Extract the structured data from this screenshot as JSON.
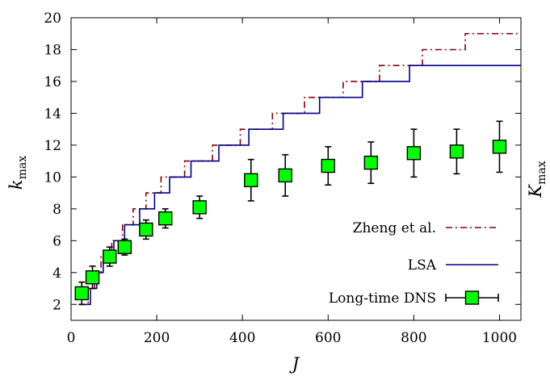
{
  "chart_data": {
    "type": "line",
    "xlabel": "J",
    "ylabel": {
      "main": "k",
      "sub": "max"
    },
    "y2label": {
      "main": "K",
      "sub": "max"
    },
    "xlim": [
      0,
      1050
    ],
    "ylim": [
      1,
      20
    ],
    "xticks": [
      0,
      200,
      400,
      600,
      800,
      1000
    ],
    "yticks": [
      2,
      4,
      6,
      8,
      10,
      12,
      14,
      16,
      18,
      20
    ],
    "grid": false,
    "legend_position": "bottom-right",
    "series": [
      {
        "name": "Zheng et al.",
        "style": "dash-dot-step",
        "color": "#8b0000",
        "x": [
          20,
          40,
          55,
          70,
          95,
          120,
          145,
          175,
          210,
          265,
          330,
          395,
          470,
          545,
          635,
          720,
          820,
          920,
          1030,
          1050
        ],
        "y": [
          2,
          3,
          4,
          5,
          6,
          7,
          8,
          9,
          10,
          11,
          12,
          13,
          14,
          15,
          16,
          17,
          18,
          19,
          19,
          19
        ]
      },
      {
        "name": "LSA",
        "style": "solid-step",
        "color": "#00008b",
        "x": [
          20,
          45,
          60,
          75,
          100,
          125,
          160,
          195,
          230,
          280,
          345,
          415,
          495,
          580,
          680,
          790,
          910,
          1050
        ],
        "y": [
          2,
          3,
          4,
          5,
          6,
          7,
          8,
          9,
          10,
          11,
          12,
          13,
          14,
          15,
          16,
          17,
          17,
          17
        ]
      },
      {
        "name": "Long-time DNS",
        "style": "marker-errorbar",
        "color": "#00ff00",
        "x": [
          25,
          50,
          90,
          125,
          175,
          220,
          300,
          420,
          500,
          600,
          700,
          800,
          900,
          1000
        ],
        "y": [
          2.7,
          3.7,
          5.0,
          5.6,
          6.7,
          7.4,
          8.1,
          9.8,
          10.1,
          10.7,
          10.9,
          11.5,
          11.6,
          11.9
        ],
        "yerr": [
          0.7,
          0.7,
          0.6,
          0.5,
          0.6,
          0.6,
          0.7,
          1.3,
          1.3,
          1.2,
          1.3,
          1.5,
          1.4,
          1.6
        ]
      }
    ]
  }
}
